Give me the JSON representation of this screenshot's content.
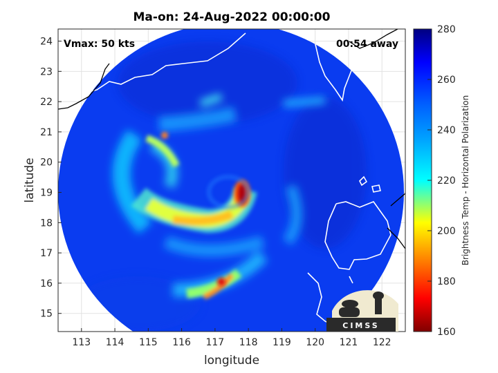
{
  "title": "Ma-on: 24-Aug-2022 00:00:00",
  "annotations": {
    "vmax": "Vmax: 50 kts",
    "time_away": "00:54 away"
  },
  "logo_text": "CIMSS",
  "colors": {
    "land_outline": "#ffffff",
    "coast_outside": "#000000"
  },
  "chart_data": {
    "type": "heatmap",
    "xlabel": "longitude",
    "ylabel": "latitude",
    "xlim": [
      112.3,
      122.7
    ],
    "ylim": [
      14.4,
      24.4
    ],
    "xticks": [
      "113",
      "114",
      "115",
      "116",
      "117",
      "118",
      "119",
      "120",
      "121",
      "122"
    ],
    "yticks": [
      "15",
      "16",
      "17",
      "18",
      "19",
      "20",
      "21",
      "22",
      "23",
      "24"
    ],
    "grid": true,
    "colorbar": {
      "label": "Brightness Temp - Horizontal Polarization",
      "range": [
        160,
        280
      ],
      "ticks": [
        "160",
        "180",
        "200",
        "220",
        "240",
        "260",
        "280"
      ],
      "colormap": "jet"
    },
    "swath_center": [
      117.6,
      19.3
    ],
    "features": [
      {
        "name": "spiral-band-north",
        "lon": 116.0,
        "lat": 20.8,
        "value": 238
      },
      {
        "name": "spiral-band-west",
        "lon": 115.2,
        "lat": 19.5,
        "value": 235
      },
      {
        "name": "main-band-south",
        "lon": 116.6,
        "lat": 18.0,
        "value": 205
      },
      {
        "name": "eyewall-core",
        "lon": 117.8,
        "lat": 18.9,
        "value": 172
      },
      {
        "name": "southern-band",
        "lon": 117.0,
        "lat": 15.8,
        "value": 190
      },
      {
        "name": "eastern-band",
        "lon": 119.0,
        "lat": 18.0,
        "value": 240
      }
    ]
  }
}
